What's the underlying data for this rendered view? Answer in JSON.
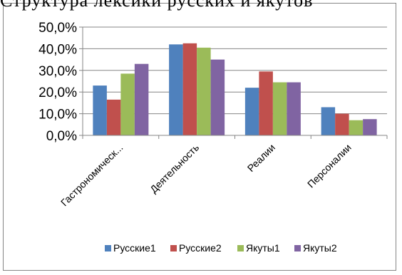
{
  "top_text_fragment": "Структура лексики русских и якутов",
  "chart_data": {
    "type": "bar",
    "title": "",
    "xlabel": "",
    "ylabel": "",
    "ylim": [
      0,
      50
    ],
    "yticks": [
      "0,0%",
      "10,0%",
      "20,0%",
      "30,0%",
      "40,0%",
      "50,0%"
    ],
    "ytick_values": [
      0,
      10,
      20,
      30,
      40,
      50
    ],
    "grid": true,
    "legend_position": "bottom",
    "categories": [
      "Гастрономическ...",
      "Деятельность",
      "Реалии",
      "Персоналии"
    ],
    "series": [
      {
        "name": "Русские1",
        "color": "#4F81BD",
        "values": [
          23,
          42,
          22,
          13
        ]
      },
      {
        "name": "Русские2",
        "color": "#C0504D",
        "values": [
          16.5,
          42.5,
          29.5,
          10
        ]
      },
      {
        "name": "Якуты1",
        "color": "#9BBB59",
        "values": [
          28.5,
          40.5,
          24.5,
          7
        ]
      },
      {
        "name": "Якуты2",
        "color": "#8064A2",
        "values": [
          33,
          35,
          24.5,
          7.5
        ]
      }
    ]
  }
}
